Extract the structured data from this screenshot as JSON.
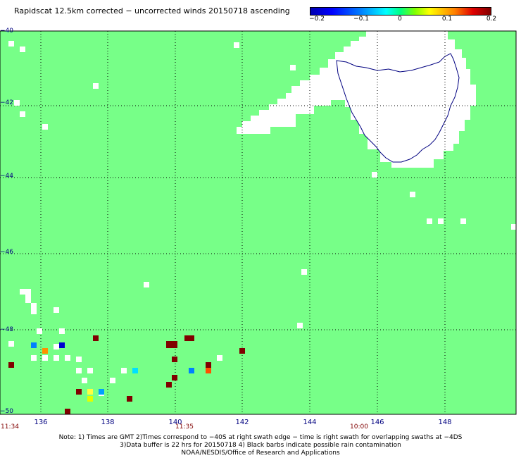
{
  "title": "Rapidscat 12.5km corrected − uncorrected winds 20150718 ascending",
  "colorbar": {
    "ticks": [
      "−0.2",
      "−0.1",
      "0",
      "0.1",
      "0.2"
    ],
    "colors": [
      "#0000b0",
      "#0000ff",
      "#00ffff",
      "#7fff7f",
      "#ffff00",
      "#ff8000",
      "#800000"
    ]
  },
  "axes": {
    "lat_labels": [
      "−40",
      "−42",
      "−44",
      "−46",
      "−48",
      "−50"
    ],
    "lon_labels": [
      "136",
      "138",
      "140",
      "142",
      "144",
      "146",
      "148"
    ],
    "lat_range": [
      -50,
      -40
    ],
    "lon_range": [
      134.9,
      149.8
    ]
  },
  "times": [
    "11:34",
    "11:35",
    "10:00"
  ],
  "notes": [
    "Note: 1) Times are GMT 2)Times correspond to −40S at right swath edge − time is right swath for overlapping swaths at −4DS",
    "3)Data buffer is 22 hrs for 20150718 4) Black barbs indicate possible rain contamination",
    "NOAA/NESDIS/Office of Research and Applications"
  ],
  "map_colors": {
    "swath": "#77ff88",
    "no_data": "#ffffff",
    "coast": "#000080",
    "grid": "#000000"
  },
  "landmass": "Tasmania"
}
